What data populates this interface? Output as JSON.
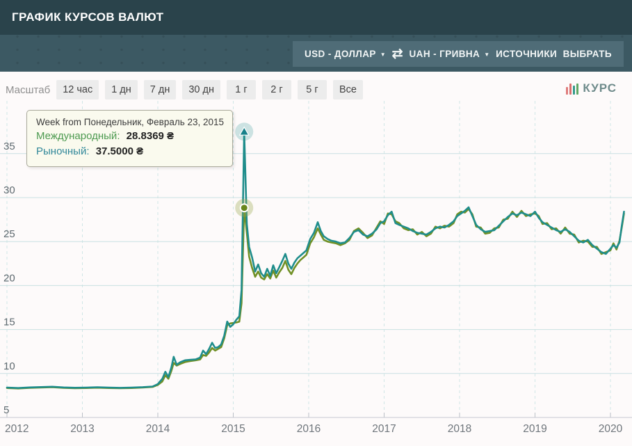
{
  "header": {
    "title": "ГРАФИК КУРСОВ ВАЛЮТ"
  },
  "toolbar": {
    "from_currency": "USD - ДОЛЛАР",
    "to_currency": "UAH - ГРИВНА",
    "caret": "▼",
    "swap_icon": "⇄",
    "sources_label": "ИСТОЧНИКИ",
    "choose_label": "ВЫБРАТЬ"
  },
  "scale": {
    "label": "Масштаб",
    "buttons": [
      "12 час",
      "1 дн",
      "7 дн",
      "30 дн",
      "1 г",
      "2 г",
      "5 г",
      "Все"
    ]
  },
  "logo": {
    "text": "КУРС"
  },
  "tooltip": {
    "title": "Week from Понедельник, Февраль 23, 2015",
    "series1_label": "Международный",
    "colon": ":",
    "series1_value": "28.8369 ₴",
    "series2_label": "Рыночный",
    "series2_value": "37.5000 ₴"
  },
  "colors": {
    "header_bg": "#2a434b",
    "toolbar_bg": "#3c5963",
    "toolbar_panel_bg": "#4f6c77",
    "market_line": "#1f8d8b",
    "international_line": "#719026",
    "grid_line": "#c9e0e1",
    "grid_dash": "#cfe6e6",
    "tooltip_bg": "#fafaee"
  },
  "chart_data": {
    "type": "line",
    "title": "USD - UAH exchange rate history",
    "xlabel": "",
    "ylabel": "",
    "xlim": [
      2012,
      2020.2
    ],
    "ylim": [
      5,
      40
    ],
    "grid": true,
    "legend_position": "none",
    "y_ticks": [
      35,
      30,
      25,
      20,
      15,
      10,
      5
    ],
    "x_ticks": [
      2012,
      2013,
      2014,
      2015,
      2016,
      2017,
      2018,
      2019,
      2020
    ],
    "x": [
      2012.0,
      2012.15,
      2012.3,
      2012.45,
      2012.6,
      2012.75,
      2012.9,
      2013.05,
      2013.2,
      2013.35,
      2013.5,
      2013.65,
      2013.8,
      2013.93,
      2014.0,
      2014.06,
      2014.1,
      2014.14,
      2014.18,
      2014.21,
      2014.25,
      2014.3,
      2014.36,
      2014.42,
      2014.5,
      2014.56,
      2014.6,
      2014.64,
      2014.68,
      2014.72,
      2014.76,
      2014.8,
      2014.84,
      2014.88,
      2014.92,
      2014.96,
      2015.0,
      2015.04,
      2015.08,
      2015.11,
      2015.145,
      2015.18,
      2015.21,
      2015.25,
      2015.29,
      2015.33,
      2015.37,
      2015.41,
      2015.45,
      2015.49,
      2015.53,
      2015.57,
      2015.61,
      2015.65,
      2015.69,
      2015.73,
      2015.77,
      2015.81,
      2015.85,
      2015.89,
      2015.93,
      2015.97,
      2016.02,
      2016.07,
      2016.12,
      2016.16,
      2016.2,
      2016.25,
      2016.3,
      2016.36,
      2016.42,
      2016.48,
      2016.54,
      2016.6,
      2016.66,
      2016.72,
      2016.78,
      2016.84,
      2016.9,
      2016.95,
      2017.0,
      2017.05,
      2017.1,
      2017.15,
      2017.2,
      2017.26,
      2017.32,
      2017.38,
      2017.44,
      2017.5,
      2017.56,
      2017.62,
      2017.68,
      2017.74,
      2017.8,
      2017.86,
      2017.92,
      2017.97,
      2018.02,
      2018.07,
      2018.12,
      2018.17,
      2018.22,
      2018.28,
      2018.34,
      2018.4,
      2018.46,
      2018.52,
      2018.58,
      2018.64,
      2018.7,
      2018.76,
      2018.82,
      2018.88,
      2018.94,
      2019.0,
      2019.05,
      2019.1,
      2019.16,
      2019.22,
      2019.28,
      2019.34,
      2019.4,
      2019.46,
      2019.52,
      2019.58,
      2019.64,
      2019.7,
      2019.76,
      2019.82,
      2019.88,
      2019.94,
      2020.0,
      2020.04,
      2020.08,
      2020.12,
      2020.15,
      2020.18
    ],
    "series": [
      {
        "name": "Международный",
        "color": "#719026",
        "values": [
          8.35,
          8.3,
          8.37,
          8.41,
          8.45,
          8.37,
          8.33,
          8.35,
          8.39,
          8.35,
          8.32,
          8.35,
          8.4,
          8.47,
          8.7,
          9.1,
          9.8,
          9.4,
          10.3,
          11.2,
          10.9,
          11.1,
          11.3,
          11.4,
          11.5,
          11.6,
          12.1,
          12.0,
          12.4,
          12.9,
          12.6,
          12.8,
          13.0,
          14.0,
          15.5,
          15.7,
          15.75,
          15.8,
          15.9,
          18.0,
          28.84,
          26.0,
          23.3,
          22.0,
          21.0,
          21.6,
          20.9,
          20.7,
          21.3,
          20.8,
          21.7,
          20.9,
          21.5,
          22.0,
          22.8,
          21.8,
          21.3,
          22.0,
          22.5,
          22.9,
          23.2,
          23.5,
          24.8,
          25.5,
          26.5,
          25.8,
          25.2,
          25.0,
          24.9,
          24.8,
          24.6,
          24.8,
          25.2,
          26.2,
          26.5,
          26.0,
          25.4,
          25.7,
          26.6,
          27.3,
          27.0,
          28.2,
          28.1,
          27.3,
          27.1,
          26.5,
          26.3,
          26.4,
          25.8,
          26.1,
          25.6,
          25.9,
          26.7,
          26.5,
          26.8,
          26.7,
          27.1,
          28.1,
          28.4,
          28.3,
          28.7,
          28.1,
          26.7,
          26.6,
          25.9,
          26.0,
          26.5,
          26.6,
          27.5,
          27.6,
          28.4,
          27.8,
          28.5,
          27.9,
          28.1,
          28.2,
          27.9,
          27.0,
          27.1,
          26.4,
          26.5,
          25.9,
          26.6,
          25.9,
          25.8,
          24.9,
          25.1,
          25.0,
          24.4,
          24.4,
          23.6,
          23.8,
          24.0,
          24.8,
          24.1,
          25.1,
          26.6,
          28.2
        ]
      },
      {
        "name": "Рыночный",
        "color": "#1f8d8b",
        "values": [
          8.4,
          8.35,
          8.42,
          8.46,
          8.5,
          8.42,
          8.38,
          8.4,
          8.44,
          8.4,
          8.37,
          8.4,
          8.45,
          8.52,
          8.8,
          9.4,
          10.2,
          9.6,
          10.7,
          11.9,
          11.0,
          11.3,
          11.5,
          11.55,
          11.6,
          11.8,
          12.6,
          12.2,
          12.8,
          13.5,
          12.9,
          13.0,
          13.3,
          14.3,
          15.9,
          15.3,
          15.6,
          16.1,
          16.5,
          19.5,
          37.5,
          27.0,
          24.4,
          23.2,
          21.6,
          22.4,
          21.4,
          21.0,
          21.9,
          21.1,
          22.3,
          21.4,
          22.1,
          22.8,
          23.6,
          22.5,
          21.9,
          22.6,
          23.1,
          23.4,
          23.7,
          24.0,
          25.3,
          26.0,
          27.2,
          26.2,
          25.6,
          25.3,
          25.1,
          25.0,
          24.8,
          24.9,
          25.4,
          26.1,
          26.3,
          25.8,
          25.6,
          25.9,
          26.4,
          27.1,
          27.3,
          28.0,
          28.4,
          27.1,
          26.9,
          26.7,
          26.5,
          26.2,
          26.0,
          25.9,
          25.8,
          26.1,
          26.5,
          26.7,
          26.6,
          26.9,
          27.3,
          27.9,
          28.2,
          28.5,
          28.9,
          27.9,
          26.9,
          26.4,
          26.1,
          26.2,
          26.3,
          26.8,
          27.3,
          27.8,
          28.2,
          28.0,
          28.3,
          28.1,
          27.9,
          28.4,
          27.7,
          27.2,
          26.9,
          26.6,
          26.3,
          26.1,
          26.4,
          26.1,
          25.6,
          25.1,
          24.9,
          25.2,
          24.6,
          24.2,
          23.8,
          23.6,
          24.2,
          24.6,
          24.3,
          24.9,
          26.8,
          28.4
        ]
      }
    ],
    "selected_point": {
      "x": 2015.145,
      "market": 37.5,
      "international": 28.8369
    }
  }
}
